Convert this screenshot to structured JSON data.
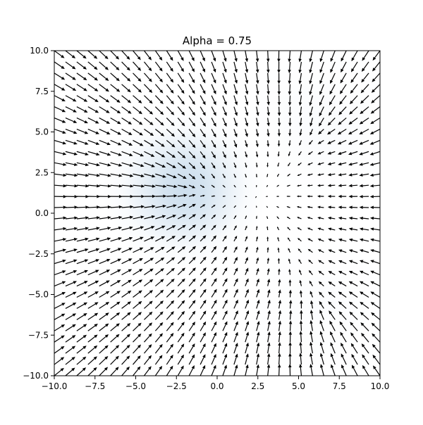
{
  "chart_data": {
    "type": "quiver",
    "title": "Alpha = 0.75",
    "xlabel": "",
    "ylabel": "",
    "xlim": [
      -10,
      10
    ],
    "ylim": [
      -10,
      10
    ],
    "grid": false,
    "legend": "none",
    "x_ticks": [
      "−10.0",
      "−7.5",
      "−5.0",
      "−2.5",
      "0.0",
      "2.5",
      "5.0",
      "7.5",
      "10.0"
    ],
    "y_ticks": [
      "−10.0",
      "−7.5",
      "−5.0",
      "−2.5",
      "0.0",
      "2.5",
      "5.0",
      "7.5",
      "10.0"
    ],
    "x_tick_values": [
      -10,
      -7.5,
      -5,
      -2.5,
      0,
      2.5,
      5,
      7.5,
      10
    ],
    "y_tick_values": [
      -10,
      -7.5,
      -5,
      -2.5,
      0,
      2.5,
      5,
      7.5,
      10
    ],
    "arrow_grid": {
      "x_start": -10,
      "x_end": 10,
      "y_start": -10,
      "y_end": 10,
      "count": 30
    },
    "background_density": {
      "colormap": "Blues",
      "alpha": 0.75,
      "peaks": [
        {
          "x": -2,
          "y": 1.5,
          "sigma": 1.8,
          "weight": 1.0
        },
        {
          "x": 6.5,
          "y": 5.5,
          "sigma": 1.8,
          "weight": 0.1
        },
        {
          "x": 6.5,
          "y": -6,
          "sigma": 1.8,
          "weight": 0.08
        }
      ]
    },
    "vector_field": {
      "sinks": [
        {
          "x": -2,
          "y": 1.5,
          "strength": 1.0
        },
        {
          "x": 6.5,
          "y": 5.5,
          "strength": 0.8
        },
        {
          "x": 6.5,
          "y": -6,
          "strength": 0.8
        }
      ]
    },
    "colors": {
      "arrows": "#000000",
      "axes": "#000000",
      "density": "#b8d1e6"
    }
  }
}
